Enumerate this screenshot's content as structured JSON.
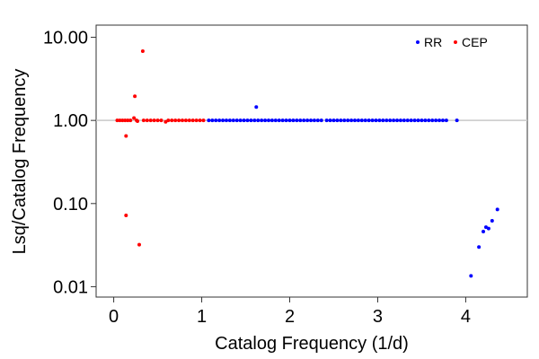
{
  "chart_data": {
    "type": "scatter",
    "title": "",
    "xlabel": "Catalog Frequency (1/d)",
    "ylabel": "Lsq/Catalog Frequency",
    "xlim": [
      -0.2,
      4.7
    ],
    "ylim": [
      0.0075,
      14
    ],
    "yscale": "log",
    "x_ticks": [
      0,
      1,
      2,
      3,
      4
    ],
    "x_tick_labels": [
      "0",
      "1",
      "2",
      "3",
      "4"
    ],
    "y_ticks": [
      0.01,
      0.1,
      1,
      10
    ],
    "y_tick_labels": [
      "0.01",
      "0.10",
      "1.00",
      "10.00"
    ],
    "reference_line": {
      "y": 1.0,
      "color": "#c8c8c8"
    },
    "grid": false,
    "legend": "top-right",
    "series": [
      {
        "name": "RR",
        "color": "#0000ff",
        "points": [
          [
            1.08,
            1.0
          ],
          [
            1.12,
            1.0
          ],
          [
            1.16,
            1.0
          ],
          [
            1.2,
            1.0
          ],
          [
            1.24,
            1.0
          ],
          [
            1.28,
            1.0
          ],
          [
            1.32,
            1.0
          ],
          [
            1.36,
            1.0
          ],
          [
            1.4,
            1.0
          ],
          [
            1.44,
            1.0
          ],
          [
            1.48,
            1.0
          ],
          [
            1.52,
            1.0
          ],
          [
            1.56,
            1.0
          ],
          [
            1.6,
            1.0
          ],
          [
            1.64,
            1.0
          ],
          [
            1.68,
            1.0
          ],
          [
            1.72,
            1.0
          ],
          [
            1.76,
            1.0
          ],
          [
            1.8,
            1.0
          ],
          [
            1.84,
            1.0
          ],
          [
            1.88,
            1.0
          ],
          [
            1.92,
            1.0
          ],
          [
            1.96,
            1.0
          ],
          [
            2.0,
            1.0
          ],
          [
            2.04,
            1.0
          ],
          [
            2.08,
            1.0
          ],
          [
            2.12,
            1.0
          ],
          [
            2.16,
            1.0
          ],
          [
            2.2,
            1.0
          ],
          [
            2.24,
            1.0
          ],
          [
            2.28,
            1.0
          ],
          [
            2.32,
            1.0
          ],
          [
            2.36,
            1.0
          ],
          [
            2.42,
            1.0
          ],
          [
            2.46,
            1.0
          ],
          [
            2.5,
            1.0
          ],
          [
            2.54,
            1.0
          ],
          [
            2.58,
            1.0
          ],
          [
            2.62,
            1.0
          ],
          [
            2.66,
            1.0
          ],
          [
            2.7,
            1.0
          ],
          [
            2.74,
            1.0
          ],
          [
            2.78,
            1.0
          ],
          [
            2.82,
            1.0
          ],
          [
            2.86,
            1.0
          ],
          [
            2.9,
            1.0
          ],
          [
            2.94,
            1.0
          ],
          [
            2.98,
            1.0
          ],
          [
            3.02,
            1.0
          ],
          [
            3.06,
            1.0
          ],
          [
            3.1,
            1.0
          ],
          [
            3.14,
            1.0
          ],
          [
            3.18,
            1.0
          ],
          [
            3.22,
            1.0
          ],
          [
            3.26,
            1.0
          ],
          [
            3.3,
            1.0
          ],
          [
            3.34,
            1.0
          ],
          [
            3.38,
            1.0
          ],
          [
            3.42,
            1.0
          ],
          [
            3.46,
            1.0
          ],
          [
            3.5,
            1.0
          ],
          [
            3.54,
            1.0
          ],
          [
            3.58,
            1.0
          ],
          [
            3.62,
            1.0
          ],
          [
            3.66,
            1.0
          ],
          [
            3.7,
            1.0
          ],
          [
            3.74,
            1.0
          ],
          [
            3.78,
            1.0
          ],
          [
            3.9,
            1.0
          ],
          [
            1.62,
            1.45
          ],
          [
            4.06,
            0.0135
          ],
          [
            4.15,
            0.03
          ],
          [
            4.2,
            0.046
          ],
          [
            4.23,
            0.052
          ],
          [
            4.26,
            0.05
          ],
          [
            4.3,
            0.062
          ],
          [
            4.36,
            0.085
          ]
        ]
      },
      {
        "name": "CEP",
        "color": "#ff0000",
        "points": [
          [
            0.04,
            1.0
          ],
          [
            0.07,
            1.0
          ],
          [
            0.1,
            1.0
          ],
          [
            0.13,
            1.0
          ],
          [
            0.16,
            1.0
          ],
          [
            0.19,
            1.0
          ],
          [
            0.26,
            1.0
          ],
          [
            0.34,
            1.0
          ],
          [
            0.38,
            1.0
          ],
          [
            0.42,
            1.0
          ],
          [
            0.46,
            1.0
          ],
          [
            0.5,
            1.0
          ],
          [
            0.54,
            1.0
          ],
          [
            0.62,
            1.0
          ],
          [
            0.66,
            1.0
          ],
          [
            0.7,
            1.0
          ],
          [
            0.74,
            1.0
          ],
          [
            0.78,
            1.0
          ],
          [
            0.82,
            1.0
          ],
          [
            0.86,
            1.0
          ],
          [
            0.9,
            1.0
          ],
          [
            0.94,
            1.0
          ],
          [
            0.98,
            1.0
          ],
          [
            1.02,
            1.0
          ],
          [
            0.23,
            1.07
          ],
          [
            0.27,
            0.98
          ],
          [
            0.59,
            0.96
          ],
          [
            0.33,
            6.8
          ],
          [
            0.24,
            1.95
          ],
          [
            0.14,
            0.65
          ],
          [
            0.14,
            0.072
          ],
          [
            0.29,
            0.032
          ]
        ]
      }
    ]
  }
}
